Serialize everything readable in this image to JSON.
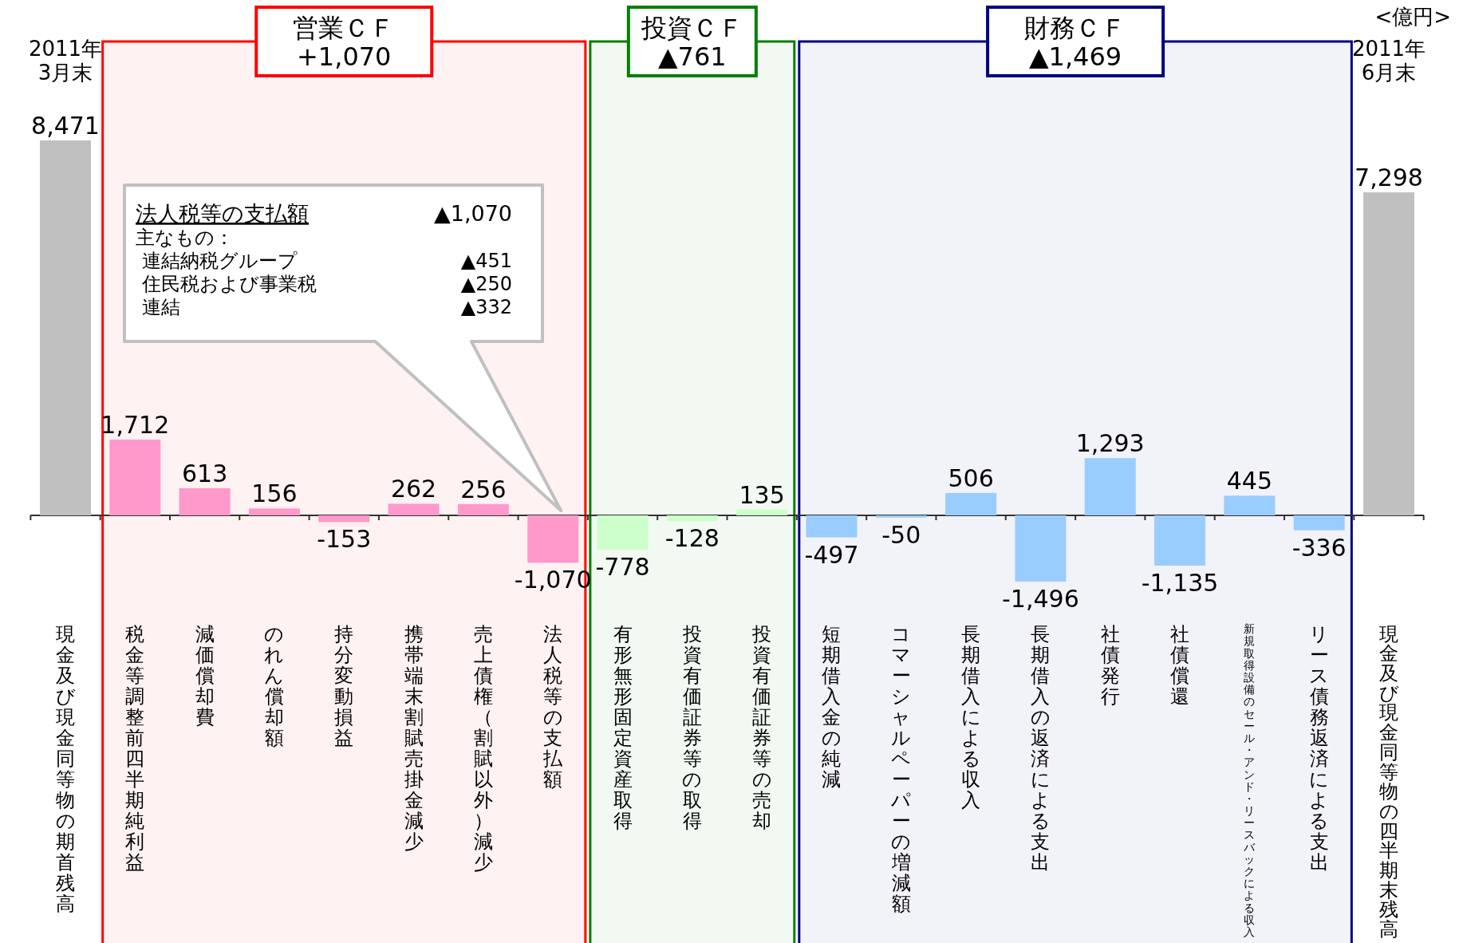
{
  "chart_data": {
    "type": "bar",
    "categories": [
      "現金及び現金同等物の期首残高",
      "税金等調整前四半期純利益",
      "減価償却費",
      "のれん償却額",
      "持分変動損益",
      "携帯端末割賦売掛金減少",
      "売上債権（割賦以外）減少",
      "法人税等の支払額",
      "有形無形固定資産取得",
      "投資有価証券等の取得",
      "投資有価証券等の売却",
      "短期借入金の純減",
      "コマーシャルペーパーの増減額",
      "長期借入による収入",
      "長期借入の返済による支出",
      "社債発行",
      "社債償還",
      "新規取得設備のセール・アンド・リースバックによる収入",
      "リース債務返済による支出",
      "現金及び現金同等物の四半期末残高"
    ],
    "values": [
      8471,
      1712,
      613,
      156,
      -153,
      262,
      256,
      -1070,
      -778,
      -128,
      135,
      -497,
      -50,
      506,
      -1496,
      1293,
      -1135,
      445,
      -336,
      7298
    ],
    "value_labels": [
      "8,471",
      "1,712",
      "613",
      "156",
      "-153",
      "262",
      "256",
      "-1,070",
      "-778",
      "-128",
      "135",
      "-497",
      "-50",
      "506",
      "-1,496",
      "1,293",
      "-1,135",
      "445",
      "-336",
      "7,298"
    ],
    "colors": [
      "#c0c0c0",
      "#ff99cc",
      "#ff99cc",
      "#ff99cc",
      "#ff99cc",
      "#ff99cc",
      "#ff99cc",
      "#ff99cc",
      "#ccffcc",
      "#ccffcc",
      "#ccffcc",
      "#99ccff",
      "#99ccff",
      "#99ccff",
      "#99ccff",
      "#99ccff",
      "#99ccff",
      "#99ccff",
      "#99ccff",
      "#c0c0c0"
    ],
    "bands": [
      {
        "axis": "x",
        "from": "税金等調整前四半期純利益",
        "to": "法人税等の支払額",
        "label": "営業ＣＦ\n+1,070",
        "color": "#ff0000"
      },
      {
        "axis": "x",
        "from": "有形無形固定資産取得",
        "to": "投資有価証券等の売却",
        "label": "投資ＣＦ\n▲761",
        "color": "#008000"
      },
      {
        "axis": "x",
        "from": "短期借入金の純減",
        "to": "リース債務返済による支出",
        "label": "財務ＣＦ\n▲1,469",
        "color": "#000080"
      }
    ],
    "annotations": [
      "2011年\n3月末",
      "2011年\n6月末",
      "<億円>",
      "法人税等の支払額",
      "▲1,070",
      "主なもの：",
      "連結納税グループ",
      "▲451",
      "住民税および事業税",
      "▲250",
      "連結",
      "▲332"
    ]
  }
}
